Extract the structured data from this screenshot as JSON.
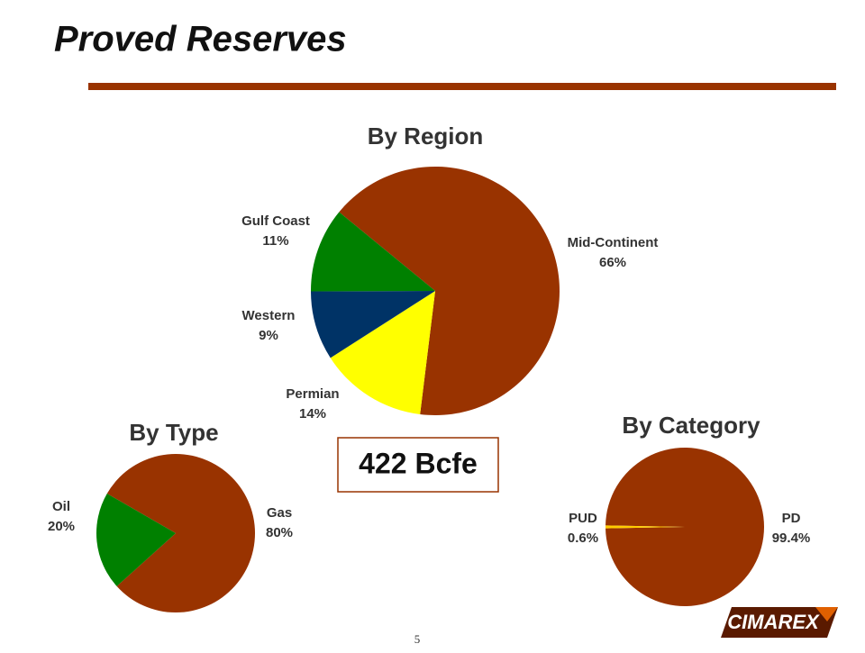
{
  "title": "Proved Reserves",
  "total": "422 Bcfe",
  "page_number": "5",
  "logo": "CIMAREX",
  "chart_data": [
    {
      "type": "pie",
      "title": "By Region",
      "categories": [
        "Mid-Continent",
        "Permian",
        "Western",
        "Gulf Coast"
      ],
      "values": [
        66,
        14,
        9,
        11
      ],
      "value_labels": [
        "66%",
        "14%",
        "9%",
        "11%"
      ],
      "colors": [
        "#993300",
        "#ffff00",
        "#003366",
        "#008000"
      ]
    },
    {
      "type": "pie",
      "title": "By Type",
      "categories": [
        "Gas",
        "Oil"
      ],
      "values": [
        80,
        20
      ],
      "value_labels": [
        "80%",
        "20%"
      ],
      "colors": [
        "#993300",
        "#008000"
      ]
    },
    {
      "type": "pie",
      "title": "By Category",
      "categories": [
        "PD",
        "PUD"
      ],
      "values": [
        99.4,
        0.6
      ],
      "value_labels": [
        "99.4%",
        "0.6%"
      ],
      "colors": [
        "#993300",
        "#ffcc00"
      ]
    }
  ]
}
